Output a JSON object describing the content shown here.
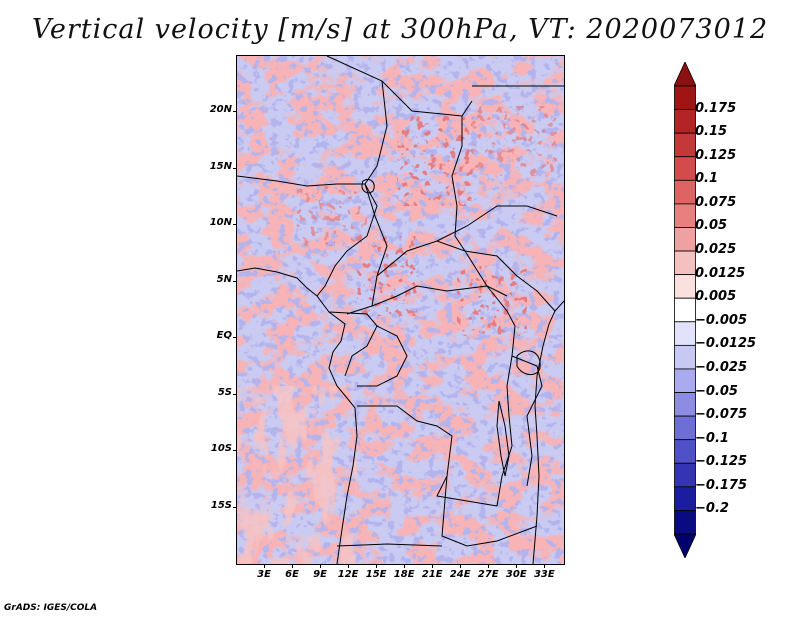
{
  "title": "Vertical velocity [m/s] at 300hPa, VT: 2020073012",
  "credit": "GrADS: IGES/COLA",
  "map": {
    "region": "Central Africa",
    "lat_labels": [
      "20N",
      "15N",
      "10N",
      "5N",
      "EQ",
      "5S",
      "10S",
      "15S"
    ],
    "lon_labels": [
      "3E",
      "6E",
      "9E",
      "12E",
      "15E",
      "18E",
      "21E",
      "24E",
      "27E",
      "30E",
      "33E"
    ],
    "lat_values": [
      20,
      15,
      10,
      5,
      0,
      -5,
      -10,
      -15
    ],
    "lon_values": [
      3,
      6,
      9,
      12,
      15,
      18,
      21,
      24,
      27,
      30,
      33
    ],
    "lon_range": [
      0,
      35
    ],
    "lat_range": [
      -20,
      25
    ]
  },
  "colorbar": {
    "labels": [
      "0.175",
      "0.15",
      "0.125",
      "0.1",
      "0.075",
      "0.05",
      "0.025",
      "0.0125",
      "0.005",
      "−0.005",
      "−0.0125",
      "−0.025",
      "−0.05",
      "−0.075",
      "−0.1",
      "−0.125",
      "−0.175",
      "−0.2"
    ],
    "colors": [
      "#a01414",
      "#b42424",
      "#c43838",
      "#d24c4c",
      "#de6464",
      "#e88080",
      "#f0a0a0",
      "#f6c0c0",
      "#fbe0e0",
      "#ffffff",
      "#e2e2fa",
      "#c8c8f4",
      "#aaaaee",
      "#8c8ce4",
      "#6e6ed8",
      "#5050c8",
      "#3434b4",
      "#1c1ca0",
      "#0a0a82"
    ],
    "top_color": "#8c1010",
    "bottom_color": "#00006e"
  },
  "field": {
    "blue_base": "#c8cbf3",
    "red_base": "#f1b4b4",
    "deep_red": "#c83c3c",
    "deep_blue": "#5a5ad2",
    "border_color": "#000000"
  }
}
